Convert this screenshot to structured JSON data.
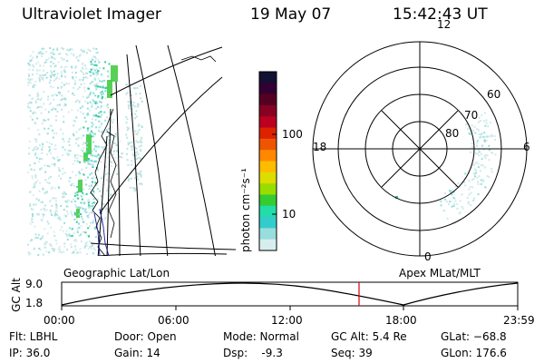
{
  "header": {
    "instrument": "Ultraviolet Imager",
    "date": "19 May 07",
    "time": "15:42:43 UT"
  },
  "left_panel": {
    "caption": "Geographic Lat/Lon"
  },
  "colorbar": {
    "unit_label": "photon cm⁻²s⁻¹",
    "tick_labels": [
      "100",
      "10"
    ],
    "colors": [
      "#111133",
      "#330033",
      "#550022",
      "#880022",
      "#bb0022",
      "#dd2200",
      "#ee5500",
      "#ff8800",
      "#ffbb00",
      "#dddd00",
      "#99dd00",
      "#33cc33",
      "#22ddaa",
      "#33cccc",
      "#99dddd",
      "#d8eeee"
    ]
  },
  "polar_plot": {
    "caption": "Apex MLat/MLT",
    "mlt_labels": {
      "top": "12",
      "left": "18",
      "right": "6",
      "bottom": "0"
    },
    "mlat_labels": [
      "60",
      "70",
      "80"
    ]
  },
  "timeline": {
    "axis_label": "GC Alt",
    "y_ticks": [
      "9.0",
      "1.8"
    ],
    "x_ticks": [
      "00:00",
      "06:00",
      "12:00",
      "18:00",
      "23:59"
    ],
    "current_time_marker_color": "#dd0000"
  },
  "info": {
    "flt": "Flt: LBHL",
    "ip": "IP: 36.0",
    "door": "Door: Open",
    "gain": "Gain: 14",
    "mode": "Mode: Normal",
    "dsp": "Dsp:    -9.3",
    "gc_alt": "GC Alt: 5.4 Re",
    "seq": "Seq: 39",
    "glat": "GLat: −68.8",
    "glon": "GLon: 176.6"
  }
}
